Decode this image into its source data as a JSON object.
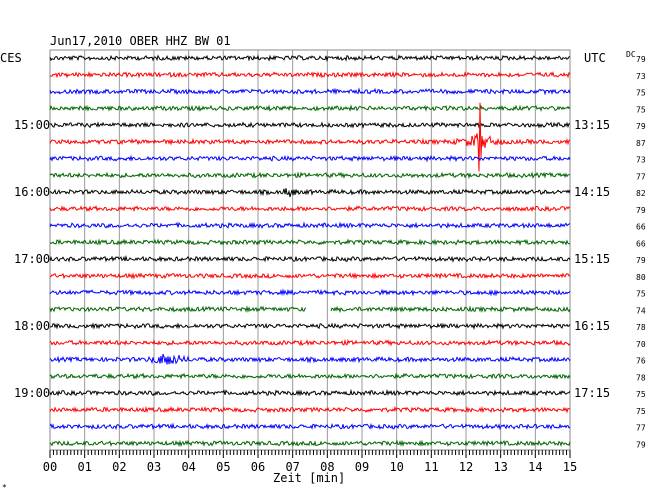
{
  "chart_data": {
    "type": "line",
    "title": "Jun17,2010   OBER HHZ BW 01",
    "left_timezone": "CES",
    "right_timezone": "UTC",
    "dc_label": "DC",
    "xlabel": "Zeit [min]",
    "x_ticks": [
      "00",
      "01",
      "02",
      "03",
      "04",
      "05",
      "06",
      "07",
      "08",
      "09",
      "10",
      "11",
      "12",
      "13",
      "14",
      "15"
    ],
    "xlim": [
      0,
      15
    ],
    "left_hour_labels": [
      {
        "row": 4,
        "label": "15:00"
      },
      {
        "row": 8,
        "label": "16:00"
      },
      {
        "row": 12,
        "label": "17:00"
      },
      {
        "row": 16,
        "label": "18:00"
      },
      {
        "row": 20,
        "label": "19:00"
      }
    ],
    "right_hour_labels": [
      {
        "row": 4,
        "label": "13:15"
      },
      {
        "row": 8,
        "label": "14:15"
      },
      {
        "row": 12,
        "label": "15:15"
      },
      {
        "row": 16,
        "label": "16:15"
      },
      {
        "row": 20,
        "label": "17:15"
      }
    ],
    "dc_values": [
      "79",
      "73",
      "75",
      "75",
      "79",
      "87",
      "73",
      "77",
      "82",
      "79",
      "66",
      "66",
      "79",
      "80",
      "75",
      "74",
      "78",
      "70",
      "76",
      "78",
      "75",
      "75",
      "77",
      "79"
    ],
    "trace_colors": [
      "#000000",
      "#ff0000",
      "#0000ff",
      "#006400"
    ],
    "events": [
      {
        "row": 5,
        "minute": 12.4,
        "description": "large spike"
      },
      {
        "row": 18,
        "minute": 3.4,
        "description": "burst"
      },
      {
        "row": 8,
        "minute": 6.9,
        "description": "small burst"
      }
    ],
    "gap": {
      "row": 15,
      "start_minute": 7.4,
      "end_minute": 8.1
    },
    "grid": true
  }
}
